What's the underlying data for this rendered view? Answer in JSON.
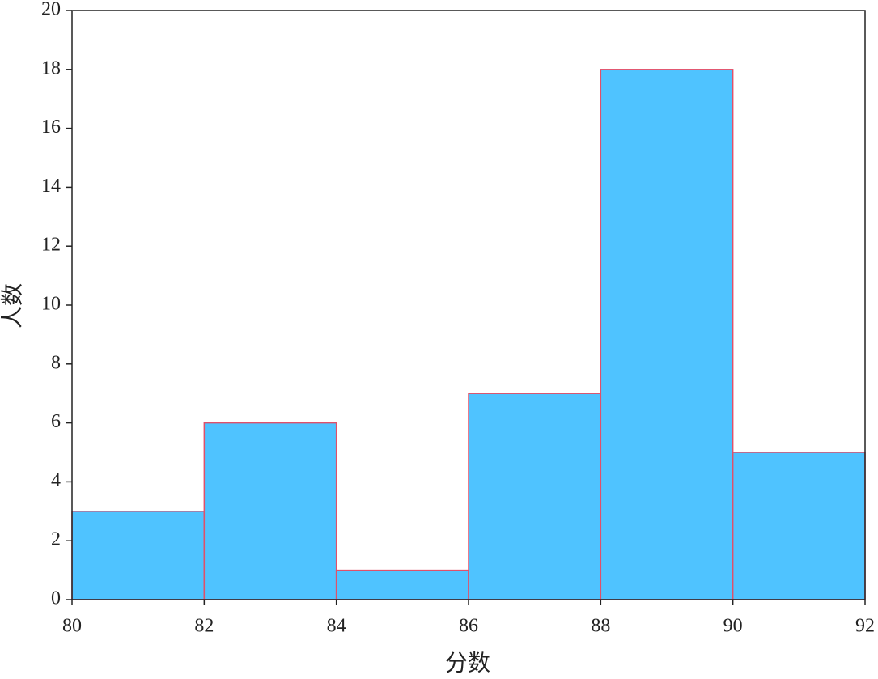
{
  "chart_data": {
    "type": "histogram",
    "x_label": "分数",
    "y_label": "人数",
    "bins": [
      80,
      82,
      84,
      86,
      88,
      90,
      92
    ],
    "values": [
      3,
      6,
      1,
      7,
      18,
      5
    ],
    "color": "#4fc3ff",
    "edgecolor": "#e0506a",
    "xlim": [
      80,
      92
    ],
    "xticks": [
      80,
      82,
      84,
      86,
      88,
      90,
      92
    ],
    "ylim": [
      0,
      20
    ],
    "yticks": [
      0,
      2,
      4,
      6,
      8,
      10,
      12,
      14,
      16,
      18,
      20
    ]
  }
}
